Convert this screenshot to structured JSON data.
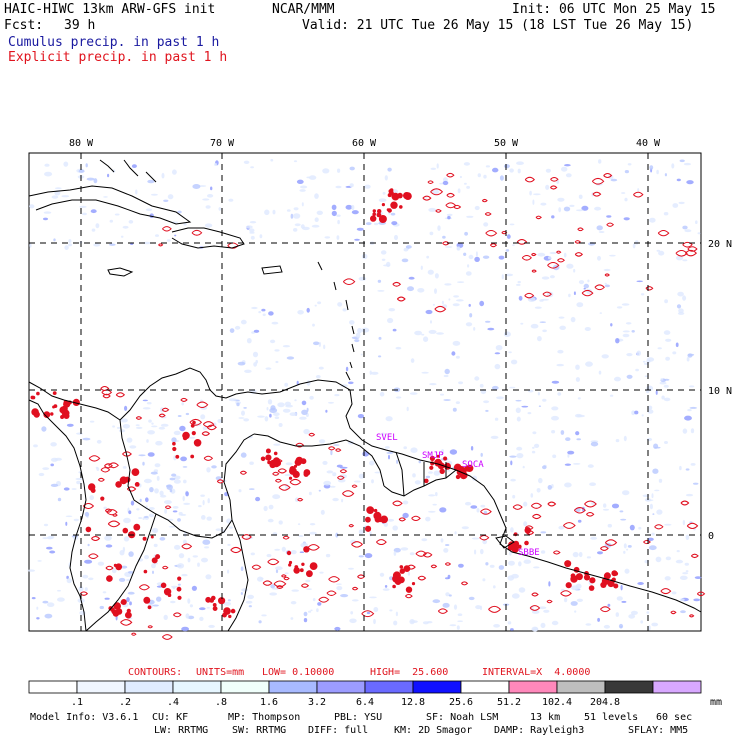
{
  "header": {
    "model_line": "HAIC-HIWC 13km ARW-GFS init",
    "org": "NCAR/MMM",
    "init": "Init: 06 UTC Mon 25 May 15",
    "fcst_label": "Fcst:",
    "fcst_value": "39 h",
    "valid": "Valid: 21 UTC Tue 26 May 15 (18 LST Tue 26 May 15)",
    "legend_cumulus": "Cumulus precip. in past 1 h",
    "legend_explicit": "Explicit precip. in past 1 h"
  },
  "map": {
    "lon_labels": [
      "80 W",
      "70 W",
      "60 W",
      "50 W",
      "40 W"
    ],
    "lat_labels": [
      "20 N",
      "10 N",
      "0"
    ],
    "stations": [
      "SVEL",
      "SMJP",
      "SOCA",
      "SBBE"
    ],
    "colors": {
      "cumulus": "#3a3aff",
      "explicit": "#e01020",
      "land": "#000000",
      "grid": "#000000"
    }
  },
  "contours": {
    "label": "CONTOURS:",
    "units": "UNITS=mm",
    "low": "LOW= 0.10000",
    "high": "HIGH=  25.600",
    "interval": "INTERVAL=X  4.0000"
  },
  "colorbar": {
    "colors": [
      "#ffffff",
      "#f0f6ff",
      "#e0ecff",
      "#e6f6ff",
      "#f0fffb",
      "#a8baff",
      "#9c9cff",
      "#6a6aff",
      "#1010ff",
      "#ffffff",
      "#ff88bb",
      "#bebebe",
      "#383838",
      "#d8a8ff"
    ],
    "labels": [
      ".1",
      ".2",
      ".4",
      ".8",
      "1.6",
      "3.2",
      "6.4",
      "12.8",
      "25.6",
      "51.2",
      "102.4",
      "204.8"
    ],
    "unit": "mm"
  },
  "footer": {
    "line1": [
      "Model Info: V3.6.1",
      "CU: KF",
      "MP: Thompson",
      "PBL: YSU",
      "SF: Noah LSM",
      "13 km",
      "51 levels",
      "60 sec"
    ],
    "line2": [
      "LW: RRTMG",
      "SW: RRTMG",
      "DIFF: full",
      "KM: 2D Smagor",
      "DAMP: Rayleigh3",
      "SFLAY: MM5"
    ]
  }
}
